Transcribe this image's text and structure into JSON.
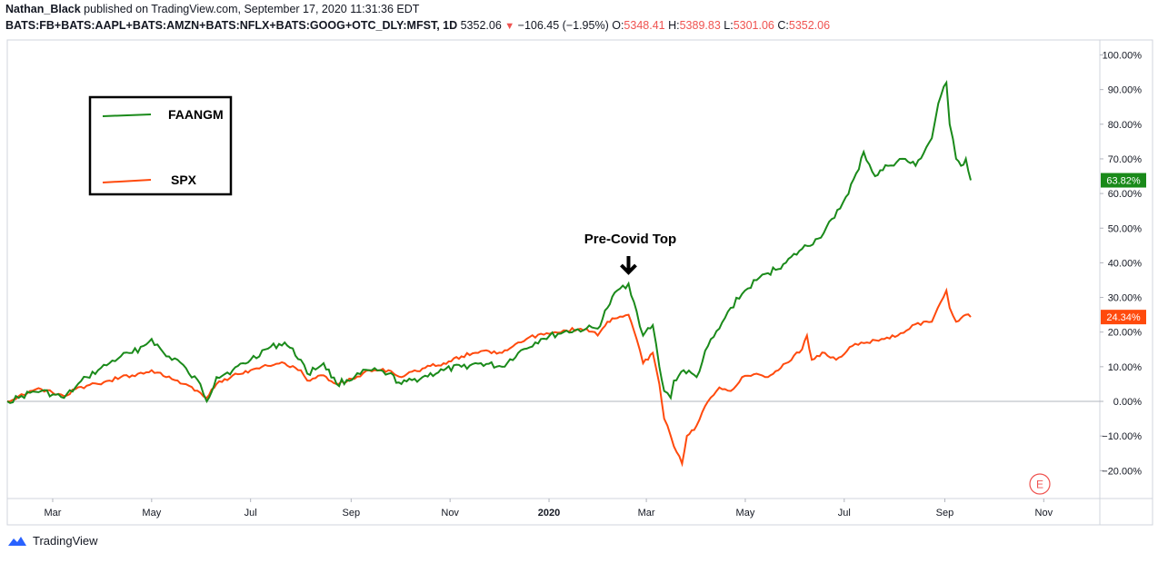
{
  "header": {
    "author": "Nathan_Black",
    "published_text": "published on TradingView.com, September 17, 2020 11:31:36 EDT",
    "symbol": "BATS:FB+BATS:AAPL+BATS:AMZN+BATS:NFLX+BATS:GOOG+OTC_DLY:MFST, 1D",
    "last": "5352.06",
    "change": "−106.45 (−1.95%)",
    "o_label": "O:",
    "o_value": "5348.41",
    "h_label": "H:",
    "h_value": "5389.83",
    "l_label": "L:",
    "l_value": "5301.06",
    "c_label": "C:",
    "c_value": "5352.06"
  },
  "footer": {
    "brand": "TradingView"
  },
  "colors": {
    "faangm": "#1a8a1a",
    "spx": "#ff4a0d",
    "grid_zero": "#b2b5be",
    "down": "#ef5350"
  },
  "chart_data": {
    "type": "line",
    "x_axis": {
      "ticks": [
        "Mar",
        "May",
        "Jul",
        "Sep",
        "Nov",
        "2020",
        "Mar",
        "May",
        "Jul",
        "Sep",
        "Nov"
      ],
      "bold_tick": "2020"
    },
    "y_axis": {
      "ticks": [
        "100.00%",
        "90.00%",
        "80.00%",
        "70.00%",
        "60.00%",
        "50.00%",
        "40.00%",
        "30.00%",
        "20.00%",
        "10.00%",
        "0.00%",
        "−10.00%",
        "−20.00%"
      ],
      "ylim": [
        -24,
        104
      ],
      "unit": "%"
    },
    "legend": {
      "placement": "top-left",
      "entries": [
        "FAANGM",
        "SPX"
      ]
    },
    "annotation": {
      "text": "Pre-Covid Top",
      "date": "2020-02-19"
    },
    "earnings_marker": "E",
    "series": [
      {
        "name": "FAANGM",
        "last_label": "63.82%",
        "points": [
          [
            "2019-02-01",
            0
          ],
          [
            "2019-02-08",
            1
          ],
          [
            "2019-02-15",
            2.5
          ],
          [
            "2019-02-22",
            3
          ],
          [
            "2019-03-01",
            2
          ],
          [
            "2019-03-08",
            1
          ],
          [
            "2019-03-15",
            4
          ],
          [
            "2019-03-22",
            7
          ],
          [
            "2019-03-29",
            9
          ],
          [
            "2019-04-05",
            11
          ],
          [
            "2019-04-12",
            13
          ],
          [
            "2019-04-19",
            14
          ],
          [
            "2019-04-26",
            16
          ],
          [
            "2019-05-01",
            18
          ],
          [
            "2019-05-10",
            13
          ],
          [
            "2019-05-17",
            12
          ],
          [
            "2019-05-24",
            8
          ],
          [
            "2019-05-31",
            5
          ],
          [
            "2019-06-04",
            0
          ],
          [
            "2019-06-10",
            7
          ],
          [
            "2019-06-20",
            9
          ],
          [
            "2019-07-01",
            12
          ],
          [
            "2019-07-10",
            15
          ],
          [
            "2019-07-22",
            17
          ],
          [
            "2019-08-01",
            12
          ],
          [
            "2019-08-05",
            8
          ],
          [
            "2019-08-15",
            11
          ],
          [
            "2019-08-23",
            5
          ],
          [
            "2019-09-03",
            7
          ],
          [
            "2019-09-12",
            9
          ],
          [
            "2019-09-24",
            8
          ],
          [
            "2019-10-02",
            5
          ],
          [
            "2019-10-15",
            7
          ],
          [
            "2019-10-28",
            9
          ],
          [
            "2019-11-08",
            10
          ],
          [
            "2019-11-20",
            11
          ],
          [
            "2019-12-03",
            10
          ],
          [
            "2019-12-13",
            14
          ],
          [
            "2019-12-27",
            18
          ],
          [
            "2020-01-10",
            20
          ],
          [
            "2020-01-24",
            21
          ],
          [
            "2020-01-31",
            21
          ],
          [
            "2020-02-06",
            27
          ],
          [
            "2020-02-12",
            32
          ],
          [
            "2020-02-19",
            34
          ],
          [
            "2020-02-24",
            26
          ],
          [
            "2020-02-28",
            19
          ],
          [
            "2020-03-05",
            22
          ],
          [
            "2020-03-09",
            10
          ],
          [
            "2020-03-12",
            3
          ],
          [
            "2020-03-16",
            1
          ],
          [
            "2020-03-18",
            6
          ],
          [
            "2020-03-24",
            9
          ],
          [
            "2020-04-01",
            7
          ],
          [
            "2020-04-08",
            16
          ],
          [
            "2020-04-15",
            21
          ],
          [
            "2020-04-22",
            27
          ],
          [
            "2020-04-29",
            31
          ],
          [
            "2020-05-08",
            35
          ],
          [
            "2020-05-15",
            37
          ],
          [
            "2020-05-26",
            40
          ],
          [
            "2020-06-05",
            44
          ],
          [
            "2020-06-15",
            47
          ],
          [
            "2020-06-25",
            53
          ],
          [
            "2020-07-02",
            59
          ],
          [
            "2020-07-10",
            67
          ],
          [
            "2020-07-13",
            72
          ],
          [
            "2020-07-20",
            65
          ],
          [
            "2020-07-28",
            68
          ],
          [
            "2020-08-06",
            70
          ],
          [
            "2020-08-14",
            68
          ],
          [
            "2020-08-24",
            76
          ],
          [
            "2020-08-28",
            86
          ],
          [
            "2020-09-02",
            92
          ],
          [
            "2020-09-04",
            80
          ],
          [
            "2020-09-08",
            70
          ],
          [
            "2020-09-11",
            68
          ],
          [
            "2020-09-14",
            70
          ],
          [
            "2020-09-17",
            63.82
          ]
        ]
      },
      {
        "name": "SPX",
        "last_label": "24.34%",
        "points": [
          [
            "2019-02-01",
            0
          ],
          [
            "2019-02-08",
            1.5
          ],
          [
            "2019-02-15",
            3
          ],
          [
            "2019-02-22",
            3.5
          ],
          [
            "2019-03-01",
            2.5
          ],
          [
            "2019-03-08",
            1.5
          ],
          [
            "2019-03-15",
            3.5
          ],
          [
            "2019-03-22",
            4.5
          ],
          [
            "2019-03-29",
            5
          ],
          [
            "2019-04-05",
            6
          ],
          [
            "2019-04-12",
            7
          ],
          [
            "2019-04-19",
            7.5
          ],
          [
            "2019-04-26",
            8
          ],
          [
            "2019-05-01",
            9
          ],
          [
            "2019-05-10",
            7
          ],
          [
            "2019-05-17",
            6
          ],
          [
            "2019-05-24",
            4.5
          ],
          [
            "2019-05-31",
            2.5
          ],
          [
            "2019-06-04",
            1
          ],
          [
            "2019-06-10",
            5
          ],
          [
            "2019-06-20",
            7.5
          ],
          [
            "2019-07-01",
            9
          ],
          [
            "2019-07-10",
            10.5
          ],
          [
            "2019-07-22",
            11
          ],
          [
            "2019-08-01",
            9
          ],
          [
            "2019-08-05",
            6
          ],
          [
            "2019-08-15",
            7.5
          ],
          [
            "2019-08-23",
            5
          ],
          [
            "2019-09-03",
            6.5
          ],
          [
            "2019-09-12",
            9
          ],
          [
            "2019-09-24",
            9
          ],
          [
            "2019-10-02",
            7
          ],
          [
            "2019-10-15",
            9.5
          ],
          [
            "2019-10-28",
            11
          ],
          [
            "2019-11-08",
            13
          ],
          [
            "2019-11-20",
            14.5
          ],
          [
            "2019-12-03",
            14
          ],
          [
            "2019-12-13",
            17
          ],
          [
            "2019-12-27",
            19.5
          ],
          [
            "2020-01-10",
            20.5
          ],
          [
            "2020-01-24",
            21
          ],
          [
            "2020-01-31",
            19
          ],
          [
            "2020-02-06",
            23
          ],
          [
            "2020-02-12",
            24
          ],
          [
            "2020-02-19",
            25
          ],
          [
            "2020-02-24",
            18
          ],
          [
            "2020-02-28",
            11
          ],
          [
            "2020-03-05",
            14
          ],
          [
            "2020-03-09",
            5
          ],
          [
            "2020-03-12",
            -5
          ],
          [
            "2020-03-16",
            -10
          ],
          [
            "2020-03-18",
            -13
          ],
          [
            "2020-03-23",
            -18
          ],
          [
            "2020-03-26",
            -10
          ],
          [
            "2020-04-01",
            -7
          ],
          [
            "2020-04-08",
            0
          ],
          [
            "2020-04-15",
            4
          ],
          [
            "2020-04-22",
            3
          ],
          [
            "2020-04-29",
            7
          ],
          [
            "2020-05-08",
            8
          ],
          [
            "2020-05-15",
            7
          ],
          [
            "2020-05-26",
            11
          ],
          [
            "2020-06-05",
            15
          ],
          [
            "2020-06-08",
            19
          ],
          [
            "2020-06-11",
            12
          ],
          [
            "2020-06-19",
            14
          ],
          [
            "2020-06-26",
            12
          ],
          [
            "2020-07-06",
            16
          ],
          [
            "2020-07-15",
            17
          ],
          [
            "2020-07-24",
            18
          ],
          [
            "2020-08-03",
            19
          ],
          [
            "2020-08-12",
            22
          ],
          [
            "2020-08-24",
            23
          ],
          [
            "2020-09-02",
            32
          ],
          [
            "2020-09-04",
            27
          ],
          [
            "2020-09-08",
            23
          ],
          [
            "2020-09-11",
            24
          ],
          [
            "2020-09-14",
            25
          ],
          [
            "2020-09-17",
            24.34
          ]
        ]
      }
    ]
  }
}
